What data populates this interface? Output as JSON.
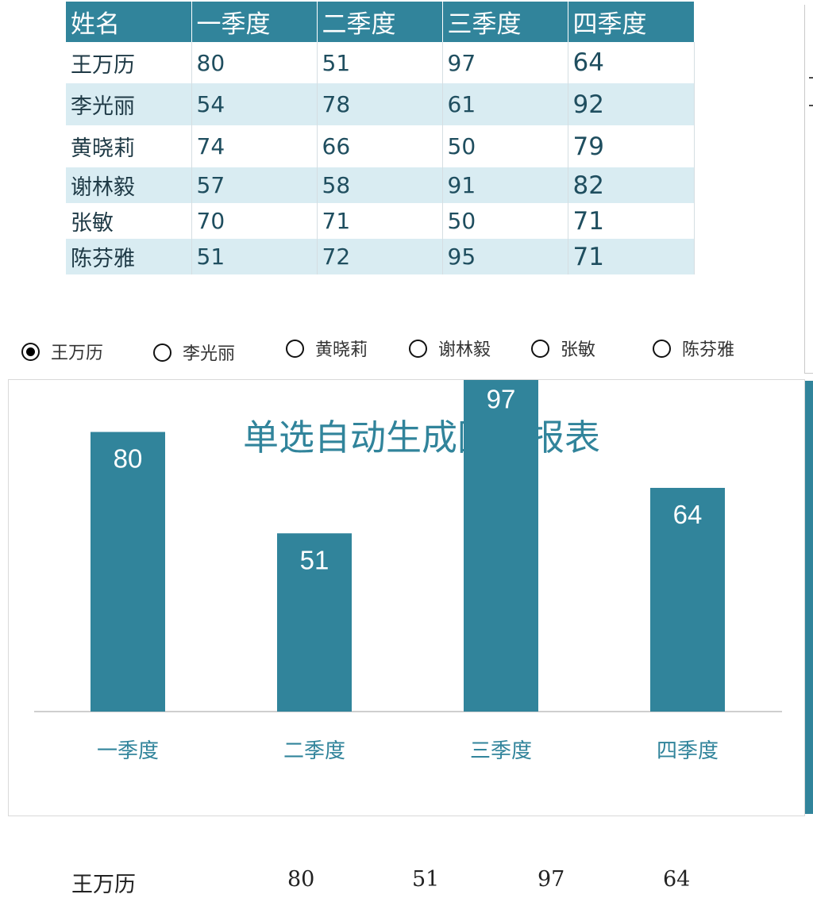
{
  "table": {
    "headers": [
      "姓名",
      "一季度",
      "二季度",
      "三季度",
      "四季度"
    ],
    "rows": [
      [
        "王万历",
        "80",
        "51",
        "97",
        "64"
      ],
      [
        "李光丽",
        "54",
        "78",
        "61",
        "92"
      ],
      [
        "黄晓莉",
        "74",
        "66",
        "50",
        "79"
      ],
      [
        "谢林毅",
        "57",
        "58",
        "91",
        "82"
      ],
      [
        "张敏",
        "70",
        "71",
        "50",
        "71"
      ],
      [
        "陈芬雅",
        "51",
        "72",
        "95",
        "71"
      ]
    ]
  },
  "radio_options": [
    "王万历",
    "李光丽",
    "黄晓莉",
    "谢林毅",
    "张敏",
    "陈芬雅"
  ],
  "selected_index": 0,
  "chart_data": {
    "type": "bar",
    "title": "单选自动生成图表报表",
    "categories": [
      "一季度",
      "二季度",
      "三季度",
      "四季度"
    ],
    "values": [
      80,
      51,
      97,
      64
    ],
    "xlabel": "",
    "ylabel": "",
    "ylim": [
      0,
      120
    ],
    "grid": false,
    "legend": "none",
    "bar_color": "#31849b",
    "label_color": "#ffffff",
    "text_color": "#31849b"
  },
  "summary": {
    "name": "王万历",
    "values": [
      "80",
      "51",
      "97",
      "64"
    ]
  },
  "colors": {
    "accent": "#31849b",
    "row_alt": "#d9ecf2"
  }
}
